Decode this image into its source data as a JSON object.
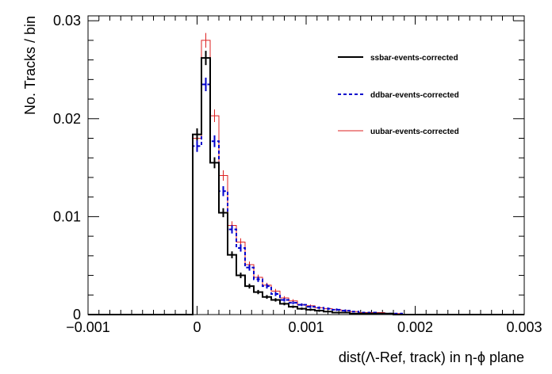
{
  "chart_data": {
    "type": "histogram-step",
    "xlabel": "dist(Λ-Ref, track) in η-ϕ plane",
    "ylabel": "No. Tracks / bin",
    "xlim": [
      -0.001,
      0.003
    ],
    "ylim": [
      0,
      0.0305
    ],
    "x_ticks": [
      -0.001,
      0,
      0.001,
      0.002,
      0.003
    ],
    "x_tick_labels": [
      "−0.001",
      "0",
      "0.001",
      "0.002",
      "0.003"
    ],
    "y_ticks": [
      0,
      0.01,
      0.02,
      0.03
    ],
    "y_tick_labels": [
      "0",
      "0.01",
      "0.02",
      "0.03"
    ],
    "bin_edges": [
      -4e-05,
      4e-05,
      0.00012,
      0.0002,
      0.00028,
      0.00036,
      0.00044,
      0.00052,
      0.0006,
      0.00068,
      0.00076,
      0.00084,
      0.00092,
      0.001,
      0.00108,
      0.00116,
      0.00124,
      0.00132,
      0.0014,
      0.00148,
      0.00156,
      0.00164,
      0.00172,
      0.0018,
      0.00188,
      0.00196,
      0.00204
    ],
    "legend_position": "top-right",
    "series": [
      {
        "name": "ssbar-events-corrected",
        "color": "#000000",
        "style": "solid-thick",
        "values": [
          0.0184,
          0.0262,
          0.0155,
          0.0104,
          0.0061,
          0.004,
          0.0029,
          0.0023,
          0.0018,
          0.0015,
          0.0011,
          0.0008,
          0.0006,
          0.0005,
          0.0004,
          0.0003,
          0.0002,
          0.0002,
          0.0001,
          0.0001,
          0.0001,
          0.0001,
          0.0001,
          0.0,
          0.0,
          0.0
        ]
      },
      {
        "name": "ddbar-events-corrected",
        "color": "#0000cc",
        "style": "dashed",
        "values": [
          0.0172,
          0.0235,
          0.0177,
          0.0126,
          0.0087,
          0.0068,
          0.0048,
          0.0036,
          0.0029,
          0.0021,
          0.0015,
          0.0012,
          0.001,
          0.0008,
          0.0007,
          0.0006,
          0.0005,
          0.0004,
          0.0003,
          0.0002,
          0.0002,
          0.0001,
          0.0001,
          0.0001,
          0.0,
          0.0
        ]
      },
      {
        "name": "uubar-events-corrected",
        "color": "#dd2222",
        "style": "solid-thin",
        "values": [
          0.018,
          0.028,
          0.0203,
          0.0142,
          0.0091,
          0.0074,
          0.0051,
          0.0038,
          0.003,
          0.0024,
          0.0017,
          0.0014,
          0.001,
          0.0009,
          0.0007,
          0.0006,
          0.0005,
          0.0004,
          0.0003,
          0.0002,
          0.0002,
          0.0002,
          0.0001,
          0.0001,
          0.0,
          0.0
        ]
      }
    ]
  }
}
